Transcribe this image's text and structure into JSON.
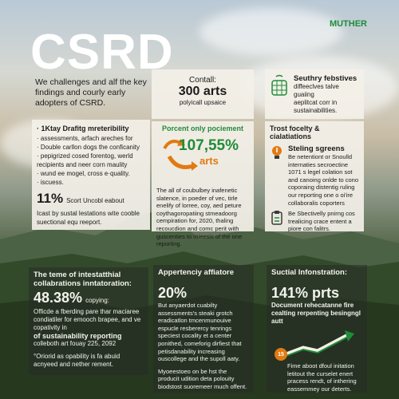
{
  "title": "CSRD",
  "brand": "MUTHER",
  "intro": "We challenges and alf the key findings and courly early adopters of CSRD.",
  "left_panel": {
    "title": "· 1Ktay Drafitg mreteribility",
    "lines": [
      "· assessments, arfach areches for",
      "· Double carllon dogs the conficanity",
      "· pepigrized cosed forentog, werld recipients and neer corn maulity",
      "· wund ee mogel, cross e·quality.",
      "· iscuess."
    ],
    "big": "11%",
    "big_label": "Scort Uncobl eabout",
    "footer": "Icast by sustal lestations wite cooble suectional equ reeport."
  },
  "center_card": {
    "label": "Contall:",
    "big": "300 arts",
    "sub": "polyicall upsaice"
  },
  "right_card1": {
    "title": "Seuthry febstives",
    "lines": [
      "diffeeclves talve guaiing",
      "aeplitcat corr in",
      "sustainabilities."
    ],
    "icon": "globe-basket-icon"
  },
  "section_left": {
    "heading": "Porcent only pociement",
    "big": "107,55%",
    "suffix": "arts",
    "body": "The all of coubulbey inafenetic slatence, in poeder of vec, tirle enelify of lorree, coy, aed peture coythagoropatiing stmeadoorg cempiration for, 2020, thaling recoucdion and comc perit with guscenties to mieesis of the one reporting."
  },
  "section_right": {
    "heading": "Trost focelty & cialatiations",
    "item1_title": "Steling sgreens",
    "item1_body": "Be netentiont or Snoulld internaties secroectine 1071 s legel colation sot and canoing onlde to cono coporaing distentig ruling our reporting one o oi'ire collaboralis coporters",
    "item2_body": "Be Sbectivelly pnirng cos trealicing crace entent a piore con falitrs."
  },
  "dark_left": {
    "title": "The teme of intestatthial collabrations inntatoration:",
    "big": "48.38%",
    "big_label": "copying:",
    "line1": "Officde a fberding pare thar maciaree condiatiler for emooch brapee, and ve copativity in",
    "bold": "of sustainability reporting",
    "line2": "colleboth art fouay 225, 2092",
    "footer": "°Oriorid as opability is fa abuid acnyeed and nether rement."
  },
  "dark_mid": {
    "title": "Appertenciy affiatore",
    "big": "20%",
    "body": "But anyaerdot cuabilty assessments's steaki grotch eradicatlon tmcenmunouive espucle resberercy tenrings speciest cocality et a center ponithed, comeforig dirfiest that petisdanability increasing ouscollege and the supoll aaty.",
    "footer": "Myoeestoeo on be hst the producit udition deta polouity biodstost suoremeer much offent."
  },
  "dark_right": {
    "title": "Suctial Infonstration:",
    "big": "141% prts",
    "body": "Document rehecatanne fire cealting rerpenting besingngl autt",
    "badge": "15",
    "footer": "Fime aboot dfoul initation letitout the curselet enert pracess rendt, of inthering eassemmey our deterts."
  },
  "colors": {
    "accent_green": "#1f8c3a",
    "accent_orange": "#e17a12"
  }
}
